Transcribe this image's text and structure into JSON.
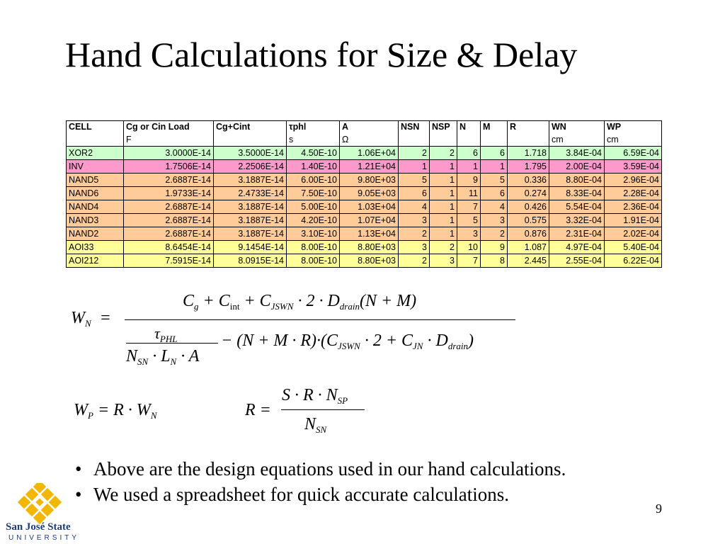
{
  "slide": {
    "title": "Hand Calculations for Size & Delay",
    "page_number": "9"
  },
  "table": {
    "headers": [
      "CELL",
      "Cg or Cin Load",
      "Cg+Cint",
      "τphl",
      "A",
      "NSN",
      "NSP",
      "N",
      "M",
      "R",
      "WN",
      "WP"
    ],
    "units": [
      "",
      "F",
      "",
      "s",
      "Ω",
      "",
      "",
      "",
      "",
      "",
      "cm",
      "cm"
    ],
    "rows": [
      {
        "color": "#ccffcc",
        "cells": [
          "XOR2",
          "3.0000E-14",
          "3.5000E-14",
          "4.50E-10",
          "1.06E+04",
          "2",
          "2",
          "6",
          "6",
          "1.718",
          "3.84E-04",
          "6.59E-04"
        ]
      },
      {
        "color": "#ff99cc",
        "cells": [
          "INV",
          "1.7506E-14",
          "2.2506E-14",
          "1.40E-10",
          "1.21E+04",
          "1",
          "1",
          "1",
          "1",
          "1.795",
          "2.00E-04",
          "3.59E-04"
        ]
      },
      {
        "color": "#ffcc99",
        "cells": [
          "NAND5",
          "2.6887E-14",
          "3.1887E-14",
          "6.00E-10",
          "9.80E+03",
          "5",
          "1",
          "9",
          "5",
          "0.336",
          "8.80E-04",
          "2.96E-04"
        ]
      },
      {
        "color": "#ffcc99",
        "cells": [
          "NAND6",
          "1.9733E-14",
          "2.4733E-14",
          "7.50E-10",
          "9.05E+03",
          "6",
          "1",
          "11",
          "6",
          "0.274",
          "8.33E-04",
          "2.28E-04"
        ]
      },
      {
        "color": "#ffcc99",
        "cells": [
          "NAND4",
          "2.6887E-14",
          "3.1887E-14",
          "5.00E-10",
          "1.03E+04",
          "4",
          "1",
          "7",
          "4",
          "0.426",
          "5.54E-04",
          "2.36E-04"
        ]
      },
      {
        "color": "#ffcc99",
        "cells": [
          "NAND3",
          "2.6887E-14",
          "3.1887E-14",
          "4.20E-10",
          "1.07E+04",
          "3",
          "1",
          "5",
          "3",
          "0.575",
          "3.32E-04",
          "1.91E-04"
        ]
      },
      {
        "color": "#ffcc99",
        "cells": [
          "NAND2",
          "2.6887E-14",
          "3.1887E-14",
          "3.10E-10",
          "1.13E+04",
          "2",
          "1",
          "3",
          "2",
          "0.876",
          "2.31E-04",
          "2.02E-04"
        ]
      },
      {
        "color": "#ffff99",
        "cells": [
          "AOI33",
          "8.6454E-14",
          "9.1454E-14",
          "8.00E-10",
          "8.80E+03",
          "3",
          "2",
          "10",
          "9",
          "1.087",
          "4.97E-04",
          "5.40E-04"
        ]
      },
      {
        "color": "#ffff99",
        "cells": [
          "AOI212",
          "7.5915E-14",
          "8.0915E-14",
          "8.00E-10",
          "8.80E+03",
          "2",
          "3",
          "7",
          "8",
          "2.445",
          "2.55E-04",
          "6.22E-04"
        ]
      }
    ]
  },
  "equations": {
    "wn_lhs": "W",
    "wn_lhs_sub": "N",
    "wn_numerator": "C_g + C_int + C_JSWN · 2 · D_drain (N + M)",
    "wn_denominator": "τ_PHL / (N_SN · L_N · A) − (N + M · R)·(C_JSWN · 2 + C_JN · D_drain)",
    "wp": "W_P = R · W_N",
    "r": "R = S · R · N_SP / N_SN"
  },
  "bullets": [
    "Above are the design equations used in our hand calculations.",
    "We used a spreadsheet for quick accurate calculations."
  ],
  "logo": {
    "line1": "San José State",
    "line2": "UNIVERSITY",
    "color": "#f2b705"
  }
}
